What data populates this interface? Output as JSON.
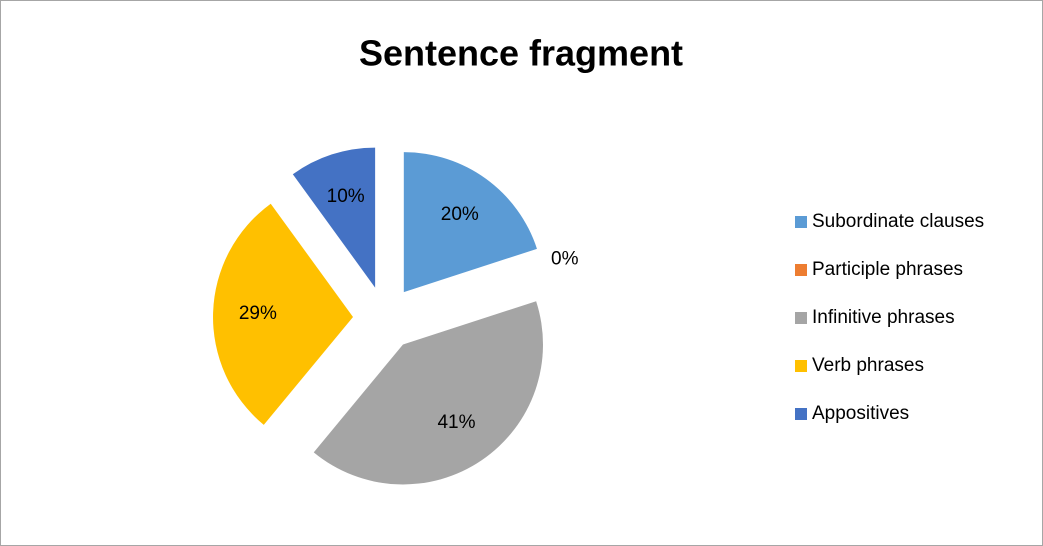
{
  "chart_data": {
    "type": "pie",
    "title": "Sentence fragment",
    "categories": [
      "Subordinate clauses",
      "Participle phrases",
      "Infinitive phrases",
      "Verb phrases",
      "Appositives"
    ],
    "values": [
      20,
      0,
      41,
      29,
      10
    ],
    "value_labels": [
      "20%",
      "0%",
      "41%",
      "29%",
      "10%"
    ],
    "colors": [
      "#5B9BD5",
      "#ED7D31",
      "#A5A5A5",
      "#FFC000",
      "#4472C4"
    ],
    "exploded": true,
    "legend": "right"
  }
}
